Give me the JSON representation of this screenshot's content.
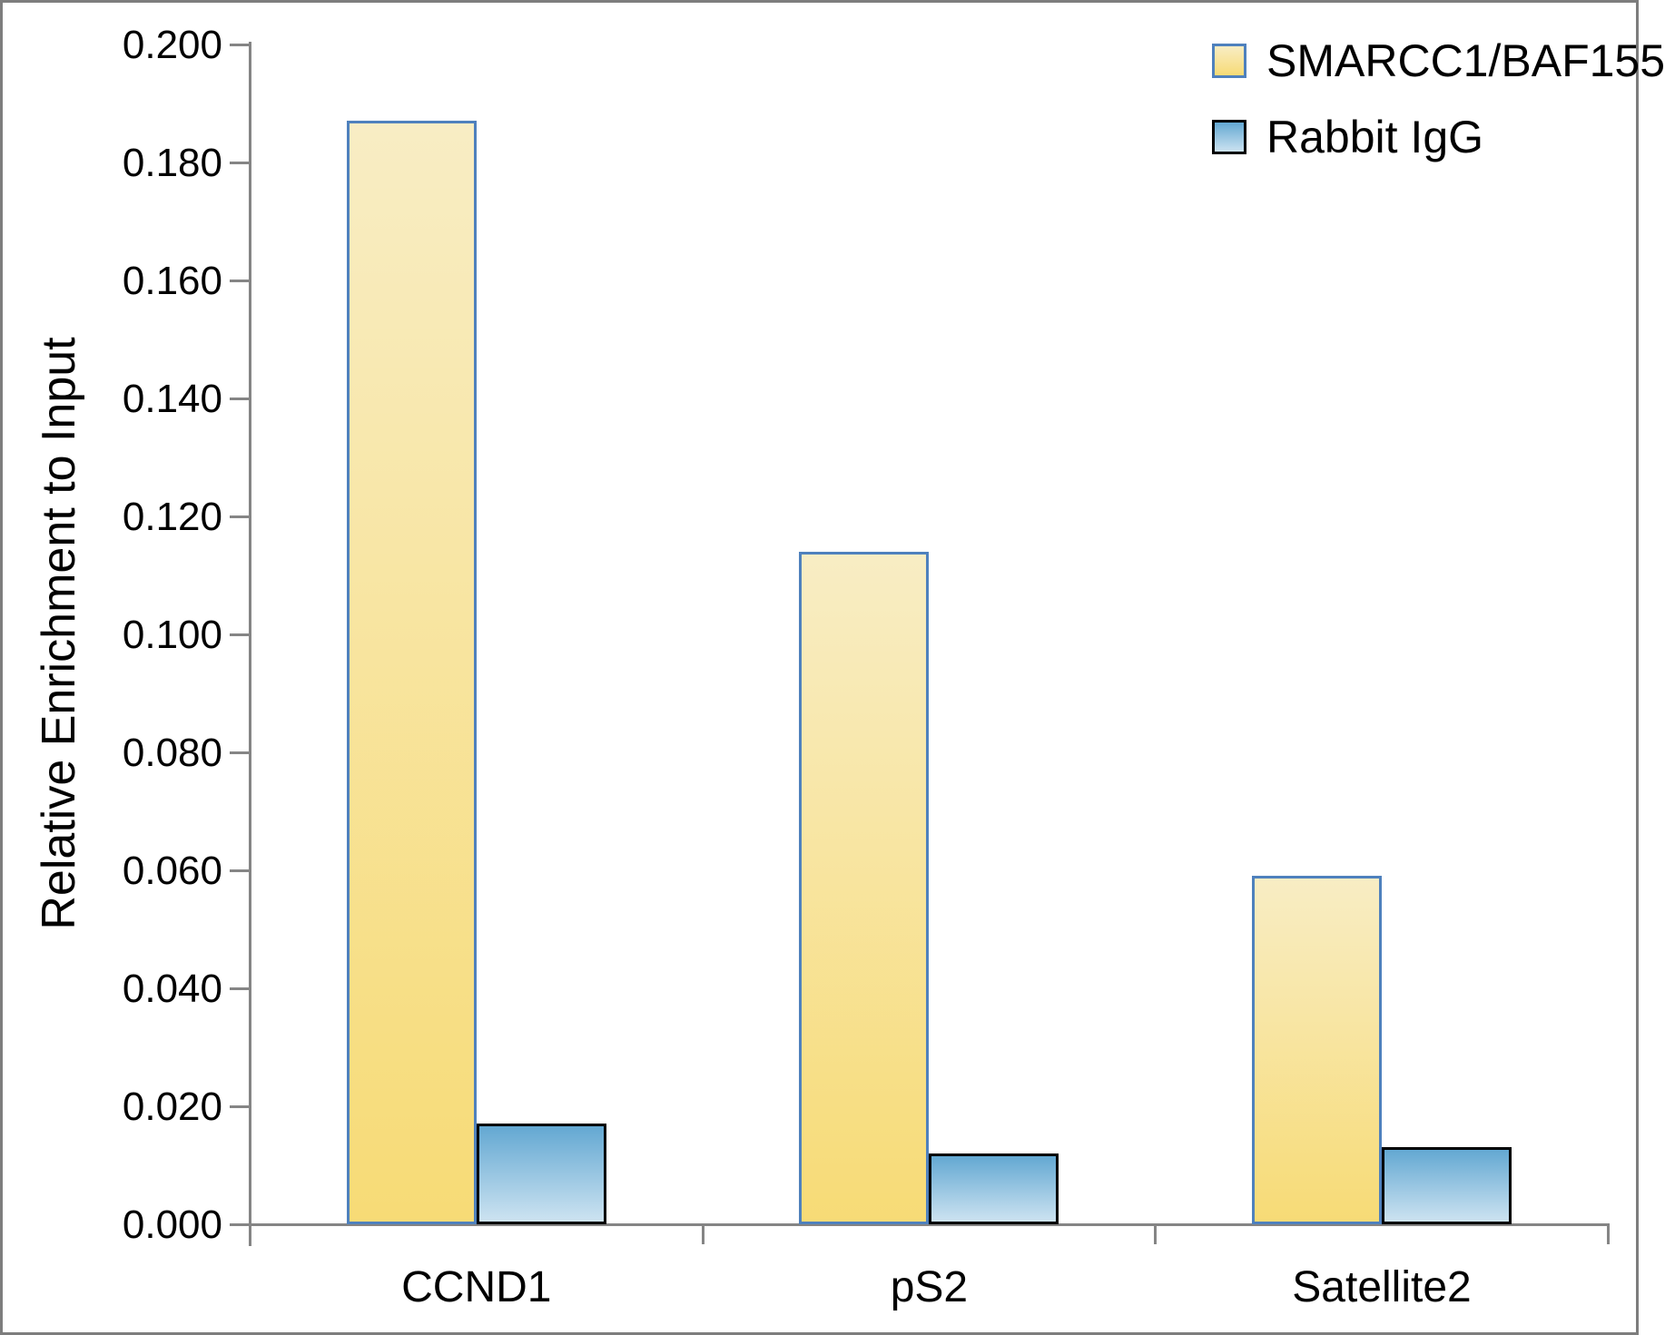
{
  "chart_data": {
    "type": "bar",
    "title": "",
    "xlabel": "",
    "ylabel": "Relative Enrichment to Input",
    "categories": [
      "CCND1",
      "pS2",
      "Satellite2"
    ],
    "series": [
      {
        "name": "SMARCC1/BAF155",
        "values": [
          0.187,
          0.114,
          0.059
        ],
        "fill_top": "#f8edc4",
        "fill_bottom": "#f7db76",
        "border_color": "#4f81bd"
      },
      {
        "name": "Rabbit IgG",
        "values": [
          0.017,
          0.012,
          0.013
        ],
        "fill_top": "#63a8d2",
        "fill_bottom": "#cde3f1",
        "border_color": "#000000"
      }
    ],
    "ylim": [
      0.0,
      0.2
    ],
    "ytick_step": 0.02,
    "ytick_labels": [
      "0.000",
      "0.020",
      "0.040",
      "0.060",
      "0.080",
      "0.100",
      "0.120",
      "0.140",
      "0.160",
      "0.180",
      "0.200"
    ],
    "grid": false,
    "legend_position": "top-right",
    "axis_color": "#858585"
  }
}
